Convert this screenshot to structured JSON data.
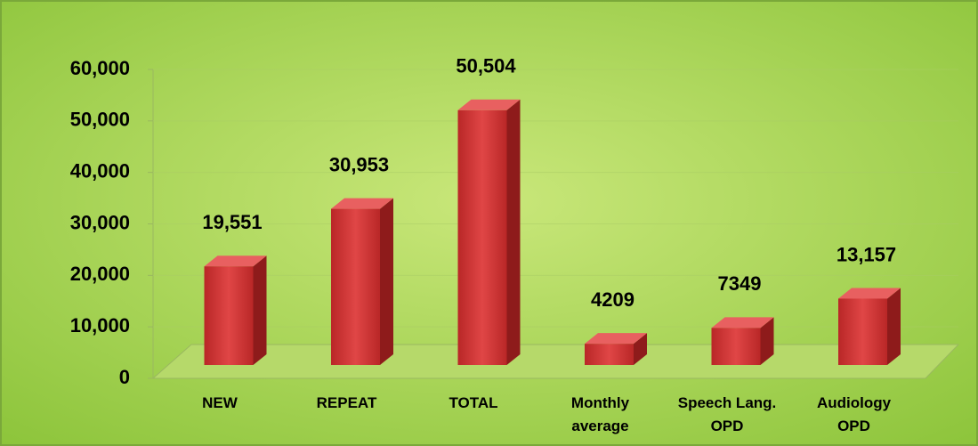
{
  "chart_data": {
    "type": "bar3d",
    "categories": [
      "NEW",
      "REPEAT",
      "TOTAL",
      "Monthly average",
      "Speech Lang. OPD",
      "Audiology OPD"
    ],
    "values": [
      19551,
      30953,
      50504,
      4209,
      7349,
      13157
    ],
    "value_labels": [
      "19,551",
      "30,953",
      "50,504",
      "4209",
      "7349",
      "13,157"
    ],
    "color": "#d63a3a",
    "ylim": [
      0,
      60000
    ],
    "yticks": [
      0,
      {
        "value": 10000,
        "label": "10,000"
      },
      {
        "value": 20000,
        "label": "20,000"
      },
      {
        "value": 30000,
        "label": "30,000"
      },
      {
        "value": 40000,
        "label": "40,000"
      },
      {
        "value": 50000,
        "label": "50,000"
      },
      {
        "value": 60000,
        "label": "60,000"
      }
    ],
    "grid": true
  }
}
